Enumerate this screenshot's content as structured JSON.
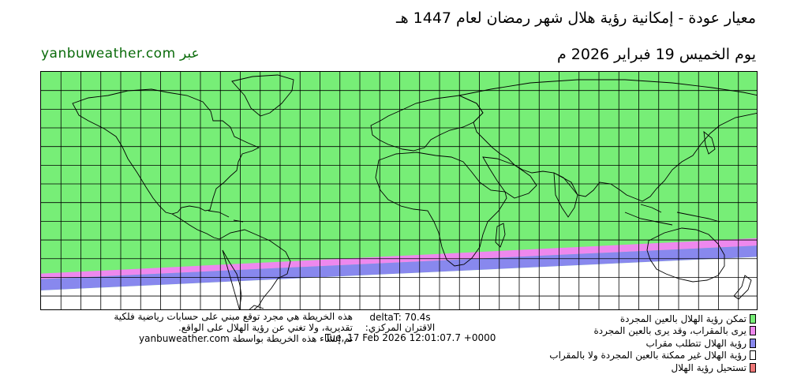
{
  "header": {
    "title": "معيار عودة - إمكانية رؤية هلال شهر رمضان لعام 1447 هـ",
    "date": "يوم الخميس 19 فبراير 2026 م",
    "site": "عبر yanbuweather.com"
  },
  "map": {
    "visible_color": "#77ee77",
    "optical_then_naked_color": "#ee88ee",
    "optical_only_color": "#8888ee",
    "not_visible_color": "#ffffff",
    "impossible_color": "#ee7777",
    "grid_color": "#000000",
    "coast_color": "#000000",
    "bands": {
      "left_edge_lats": [
        -38,
        -41,
        -47
      ],
      "right_edge_lats": [
        -19,
        -23,
        -29
      ]
    }
  },
  "notes": {
    "left_line1": "هذه الخريطة هي مجرد توقع مبني على حسابات رياضية فلكية",
    "left_line2": "تقديرية، ولا تغني عن رؤية الهلال على الواقع.",
    "left_line3": "تم إنشاء هذه الخريطة بواسطة yanbuweather.com",
    "delta_t": "deltaT: 70.4s",
    "conjunction_label": "الاقتران المركزي:",
    "conjunction_time": "Tue, 17 Feb 2026 12:01:07.7 +0000"
  },
  "legend": [
    {
      "label": "تمكن رؤية الهلال بالعين المجردة",
      "color": "#77ee77"
    },
    {
      "label": "يرى بالمقراب، وقد يرى بالعين المجردة",
      "color": "#ee88ee"
    },
    {
      "label": "رؤية الهلال تتطلب مقراب",
      "color": "#8888ee"
    },
    {
      "label": "رؤية الهلال غير ممكنة بالعين المجردة ولا بالمقراب",
      "color": "#ffffff"
    },
    {
      "label": "تستحيل رؤية الهلال",
      "color": "#ee7777"
    }
  ]
}
